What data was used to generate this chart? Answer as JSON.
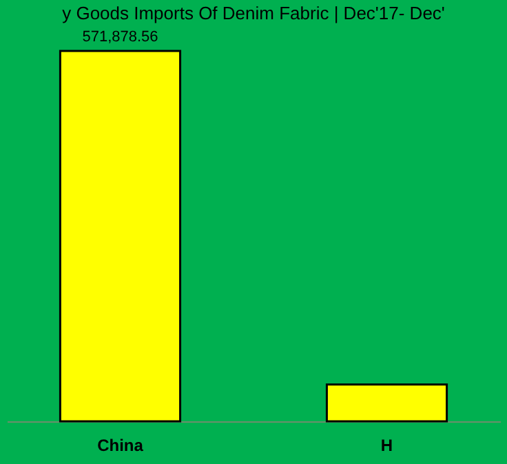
{
  "chart_data": {
    "type": "bar",
    "title": "y Goods  Imports Of Denim Fabric | Dec'17- Dec'",
    "categories": [
      "China",
      "H"
    ],
    "values": [
      571878.56,
      57000
    ],
    "color": "#ffff00",
    "value_labels": [
      "571,878.56",
      null
    ],
    "tick_labels": "x"
  }
}
